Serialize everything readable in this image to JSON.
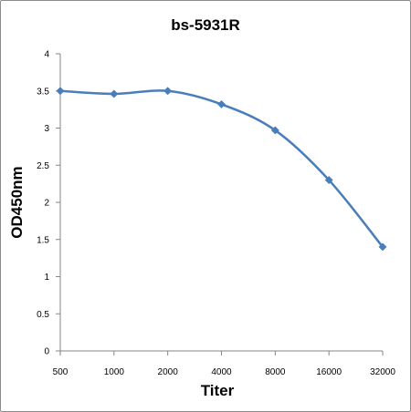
{
  "chart_data": {
    "type": "line",
    "title": "bs-5931R",
    "xlabel": "Titer",
    "ylabel": "OD450nm",
    "categories": [
      "500",
      "1000",
      "2000",
      "4000",
      "8000",
      "16000",
      "32000"
    ],
    "series": [
      {
        "values": [
          3.5,
          3.46,
          3.5,
          3.32,
          2.97,
          2.3,
          1.4
        ]
      }
    ],
    "ylim": [
      0,
      4
    ],
    "yticks": [
      "0",
      "0.5",
      "1",
      "1.5",
      "2",
      "2.5",
      "3",
      "3.5",
      "4"
    ],
    "line_color": "#4a7ebb",
    "marker": "diamond",
    "smooth": true,
    "grid": false,
    "legend": "none"
  }
}
